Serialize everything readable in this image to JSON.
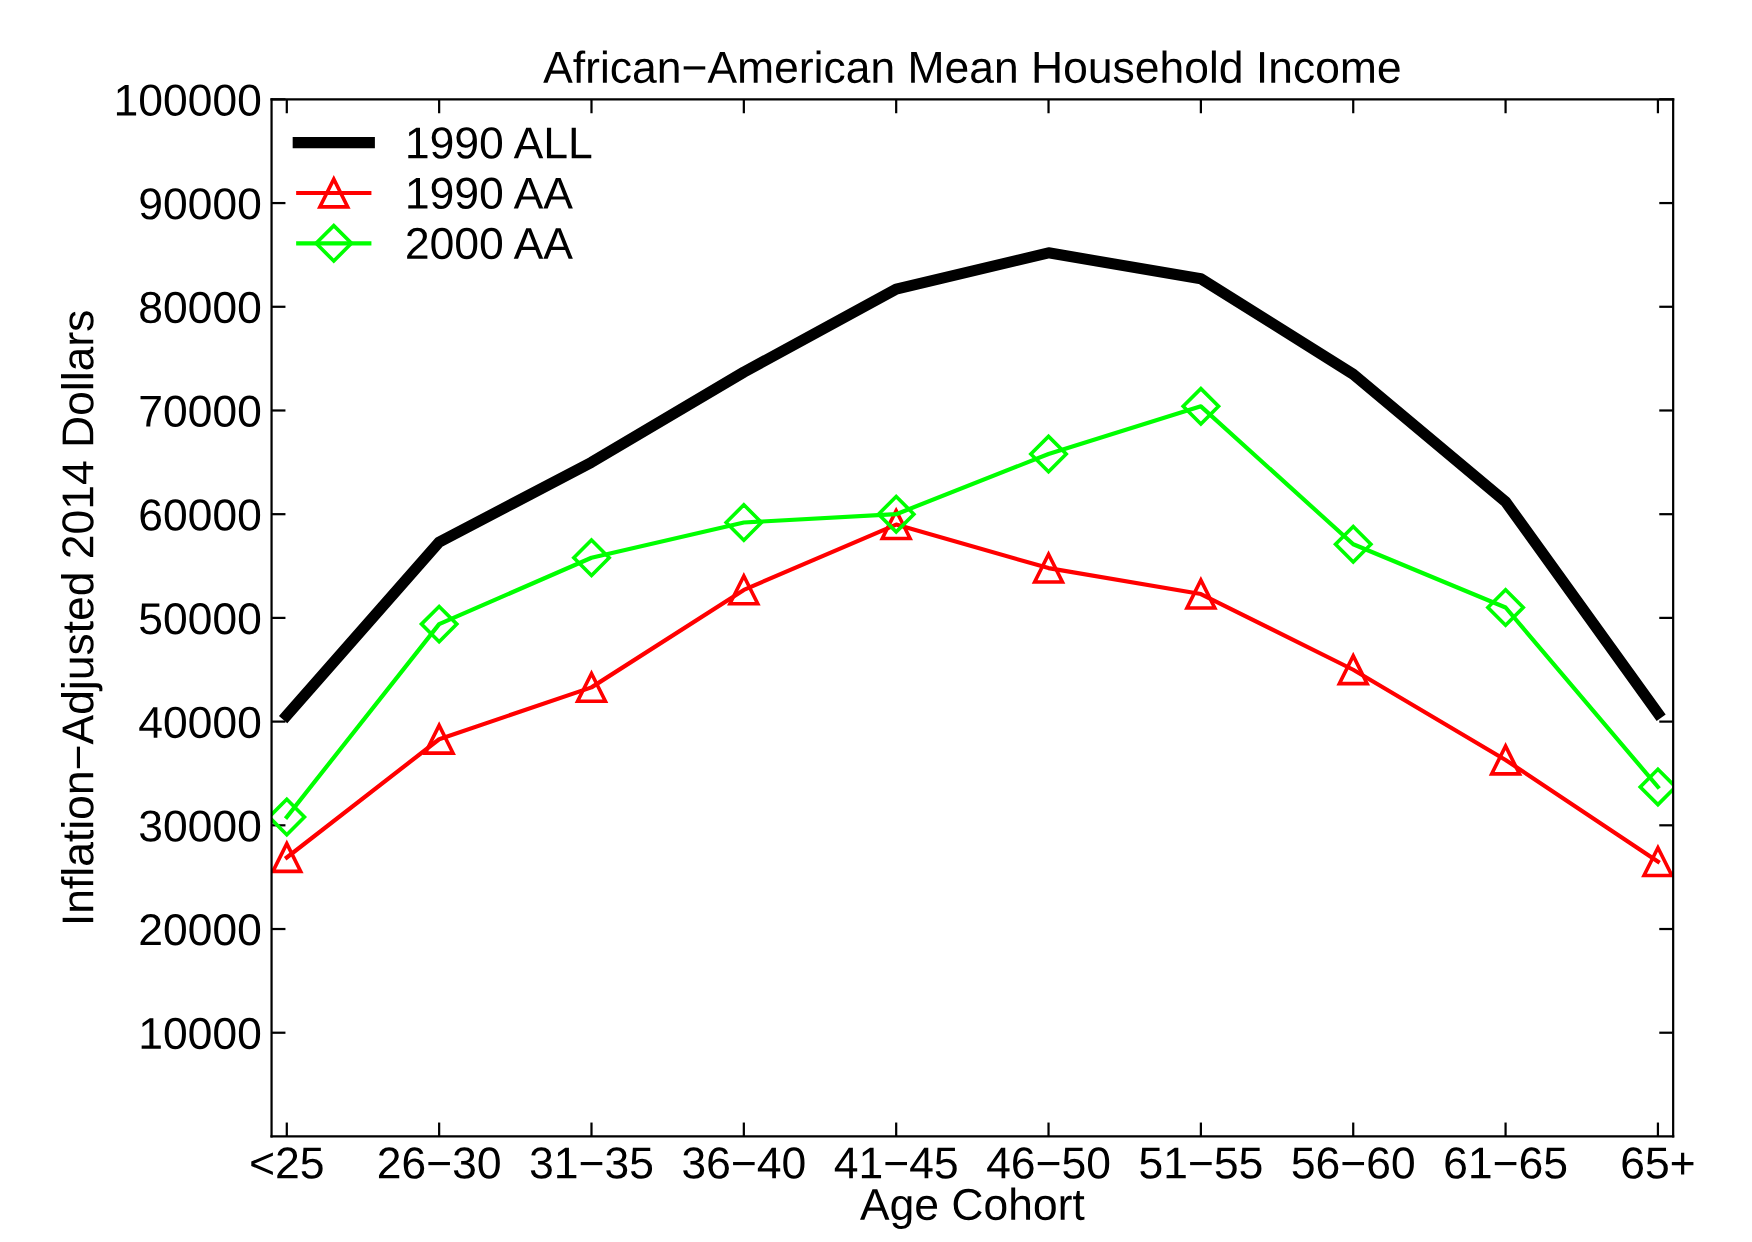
{
  "chart_data": {
    "type": "line",
    "title": "African−American Mean Household Income",
    "xlabel": "Age Cohort",
    "ylabel": "Inflation−Adjusted 2014 Dollars",
    "categories": [
      "<25",
      "26−30",
      "31−35",
      "36−40",
      "41−45",
      "46−50",
      "51−55",
      "56−60",
      "61−65",
      "65+"
    ],
    "series": [
      {
        "name": "1990 ALL",
        "color": "#000000",
        "marker": "none",
        "values": [
          40600,
          57300,
          65000,
          73700,
          81700,
          85200,
          82700,
          73500,
          61200,
          40800
        ]
      },
      {
        "name": "1990 AA",
        "color": "#ff0000",
        "marker": "triangle",
        "values": [
          26900,
          38300,
          43300,
          52700,
          59000,
          54800,
          52300,
          45000,
          36300,
          26500
        ]
      },
      {
        "name": "2000 AA",
        "color": "#00ff00",
        "marker": "diamond",
        "values": [
          30800,
          49400,
          55800,
          59200,
          60000,
          65800,
          70400,
          57100,
          51000,
          33700
        ]
      }
    ],
    "ylim": [
      0,
      100000
    ],
    "yticks": [
      10000,
      20000,
      30000,
      40000,
      50000,
      60000,
      70000,
      80000,
      90000,
      100000
    ],
    "grid": false,
    "legend": "top left",
    "line_style": "solid"
  }
}
